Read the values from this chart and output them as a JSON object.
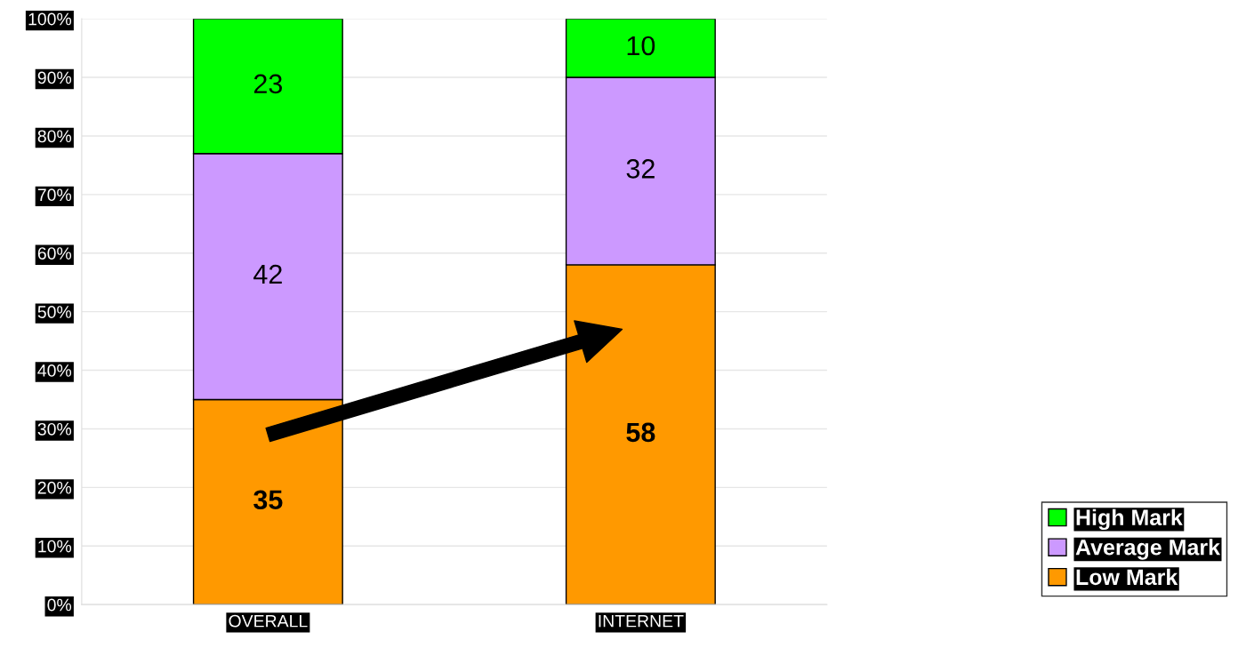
{
  "chart_data": {
    "type": "bar",
    "stacked": true,
    "categories": [
      "OVERALL",
      "INTERNET"
    ],
    "series": [
      {
        "name": "Low Mark",
        "color": "#ff9900",
        "values": [
          35,
          58
        ]
      },
      {
        "name": "Average Mark",
        "color": "#cc99ff",
        "values": [
          42,
          32
        ]
      },
      {
        "name": "High Mark",
        "color": "#00ff00",
        "values": [
          23,
          10
        ]
      }
    ],
    "ylim": [
      0,
      100
    ],
    "yticks": [
      {
        "value": 0,
        "label": "0%"
      },
      {
        "value": 10,
        "label": "10%"
      },
      {
        "value": 20,
        "label": "20%"
      },
      {
        "value": 30,
        "label": "30%"
      },
      {
        "value": 40,
        "label": "40%"
      },
      {
        "value": 50,
        "label": "50%"
      },
      {
        "value": 60,
        "label": "60%"
      },
      {
        "value": 70,
        "label": "70%"
      },
      {
        "value": 80,
        "label": "80%"
      },
      {
        "value": 90,
        "label": "90%"
      },
      {
        "value": 100,
        "label": "100%"
      }
    ],
    "grid": "y",
    "legend": "bottom right",
    "data_labels": true
  }
}
